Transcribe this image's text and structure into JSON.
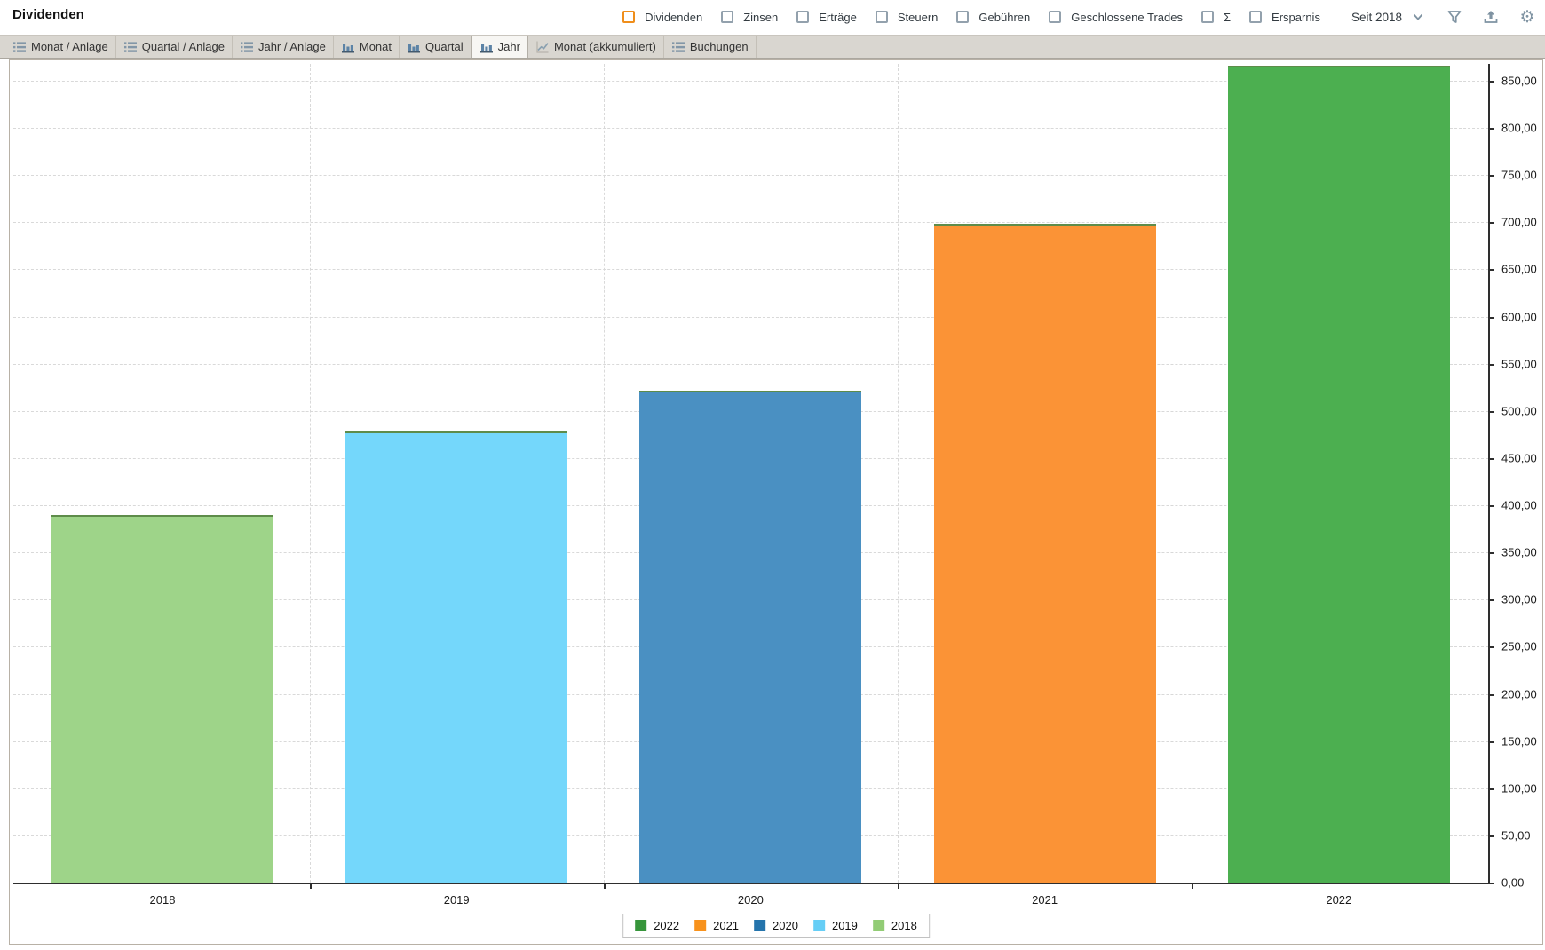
{
  "header": {
    "title": "Dividenden",
    "toggles": [
      {
        "label": "Dividenden",
        "checked": true
      },
      {
        "label": "Zinsen",
        "checked": false
      },
      {
        "label": "Erträge",
        "checked": false
      },
      {
        "label": "Steuern",
        "checked": false
      },
      {
        "label": "Gebühren",
        "checked": false
      },
      {
        "label": "Geschlossene Trades",
        "checked": false
      },
      {
        "label": "Σ",
        "checked": false
      },
      {
        "label": "Ersparnis",
        "checked": false
      }
    ],
    "checked_box_color": "#ef8e1b",
    "unchecked_box_color": "#93a1ad",
    "period_label": "Seit 2018",
    "icons": [
      "chevron-down",
      "filter",
      "export",
      "settings"
    ]
  },
  "tabs": [
    {
      "label": "Monat / Anlage",
      "icon": "list",
      "active": false
    },
    {
      "label": "Quartal / Anlage",
      "icon": "list",
      "active": false
    },
    {
      "label": "Jahr / Anlage",
      "icon": "list",
      "active": false
    },
    {
      "label": "Monat",
      "icon": "bar-chart",
      "active": false
    },
    {
      "label": "Quartal",
      "icon": "bar-chart",
      "active": false
    },
    {
      "label": "Jahr",
      "icon": "bar-chart",
      "active": true
    },
    {
      "label": "Monat (akkumuliert)",
      "icon": "line-chart",
      "active": false
    },
    {
      "label": "Buchungen",
      "icon": "list",
      "active": false
    }
  ],
  "chart_data": {
    "type": "bar",
    "title": "Dividenden",
    "categories": [
      "2018",
      "2019",
      "2020",
      "2021",
      "2022"
    ],
    "values": [
      390,
      478,
      521,
      698,
      866
    ],
    "bar_colors": [
      "#9ed489",
      "#74d7fb",
      "#4a90c2",
      "#fb9336",
      "#4caf50"
    ],
    "bar_border_color": "#5e8c4a",
    "xlabel": "",
    "ylabel": "",
    "ylim": [
      0,
      868
    ],
    "ytick_step": 50,
    "ytick_labels": [
      "0,00",
      "50,00",
      "100,00",
      "150,00",
      "200,00",
      "250,00",
      "300,00",
      "350,00",
      "400,00",
      "450,00",
      "500,00",
      "550,00",
      "600,00",
      "650,00",
      "700,00",
      "750,00",
      "800,00",
      "850,00"
    ],
    "grid": "dashed",
    "legend": {
      "position": "bottom",
      "entries": [
        {
          "label": "2022",
          "color": "#36953b"
        },
        {
          "label": "2021",
          "color": "#f8921c"
        },
        {
          "label": "2020",
          "color": "#2474ac"
        },
        {
          "label": "2019",
          "color": "#66cef6"
        },
        {
          "label": "2018",
          "color": "#92cc75"
        }
      ]
    }
  }
}
